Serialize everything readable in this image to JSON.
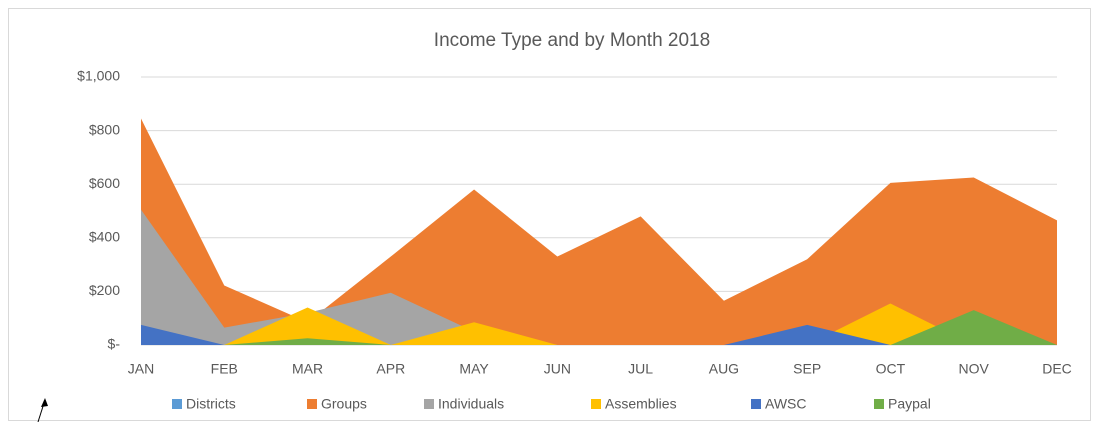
{
  "chart_data": {
    "type": "area",
    "title": "Income Type and by Month 2018",
    "categories": [
      "JAN",
      "FEB",
      "MAR",
      "APR",
      "MAY",
      "JUN",
      "JUL",
      "AUG",
      "SEP",
      "OCT",
      "NOV",
      "DEC"
    ],
    "series": [
      {
        "name": "Districts",
        "color": "#5b9bd5",
        "values": [
          0,
          0,
          0,
          0,
          0,
          0,
          0,
          0,
          0,
          0,
          0,
          0
        ]
      },
      {
        "name": "Groups",
        "color": "#ed7d31",
        "values": [
          845,
          222,
          85,
          330,
          580,
          330,
          480,
          165,
          320,
          605,
          625,
          465
        ]
      },
      {
        "name": "Individuals",
        "color": "#a5a5a5",
        "values": [
          505,
          65,
          120,
          195,
          50,
          0,
          0,
          0,
          0,
          0,
          0,
          0
        ]
      },
      {
        "name": "Assemblies",
        "color": "#ffc000",
        "values": [
          0,
          0,
          140,
          0,
          85,
          0,
          0,
          0,
          0,
          155,
          0,
          0
        ]
      },
      {
        "name": "AWSC",
        "color": "#4472c4",
        "values": [
          75,
          0,
          0,
          0,
          0,
          0,
          0,
          0,
          75,
          0,
          0,
          0
        ]
      },
      {
        "name": "Paypal",
        "color": "#70ad47",
        "values": [
          0,
          0,
          25,
          0,
          0,
          0,
          0,
          0,
          0,
          0,
          130,
          0
        ]
      }
    ],
    "ylim": [
      0,
      1000
    ],
    "yticks": [
      {
        "value": 0,
        "label": "$-"
      },
      {
        "value": 200,
        "label": "$200"
      },
      {
        "value": 400,
        "label": "$400"
      },
      {
        "value": 600,
        "label": "$600"
      },
      {
        "value": 800,
        "label": "$800"
      },
      {
        "value": 1000,
        "label": "$1,000"
      }
    ],
    "grid": true,
    "legend": "bottom"
  }
}
